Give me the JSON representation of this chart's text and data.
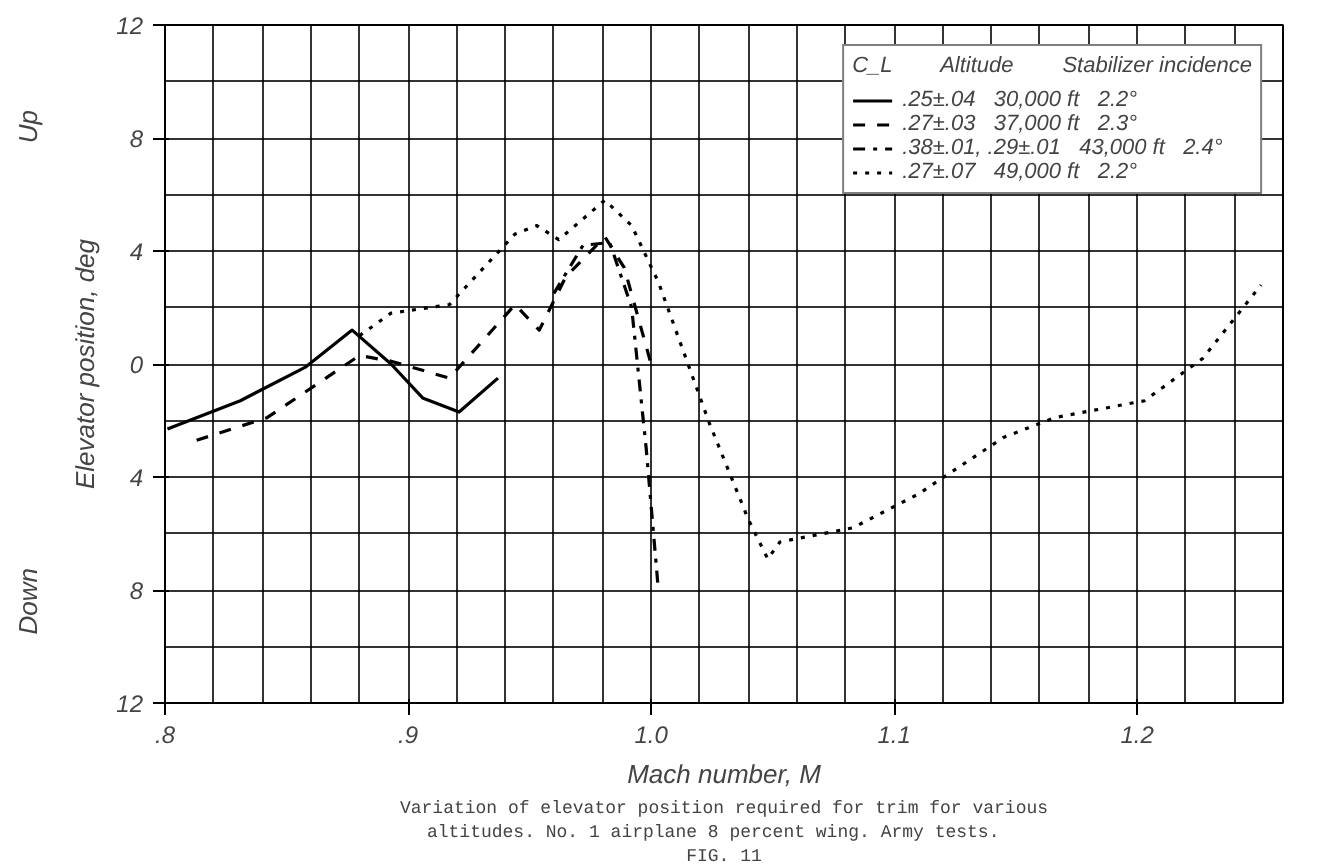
{
  "chart_data": {
    "type": "line",
    "xlabel": "Mach number, M",
    "ylabel": "Elevator position, deg",
    "legend_title": "C_L        Altitude        Stabilizer incidence",
    "xlim": [
      0.8,
      1.26
    ],
    "xticks": [
      {
        "value": 0.8,
        "label": ".8"
      },
      {
        "value": 0.9,
        "label": ".9"
      },
      {
        "value": 1.0,
        "label": "1.0"
      },
      {
        "value": 1.1,
        "label": "1.1"
      },
      {
        "value": 1.2,
        "label": "1.2"
      }
    ],
    "ylim": [
      -12,
      12
    ],
    "yticks": [
      {
        "value": -12,
        "label": "12"
      },
      {
        "value": -8,
        "label": "8"
      },
      {
        "value": -4,
        "label": "4"
      },
      0,
      4,
      8,
      12
    ],
    "grid": true,
    "legend": "top right",
    "marker": "none",
    "series": [
      {
        "name": ".25±.04   30,000 ft   2.2°",
        "color": "#000000",
        "line_style": "solid",
        "x": [
          0.801,
          0.831,
          0.858,
          0.877,
          0.893,
          0.906,
          0.921,
          0.937
        ],
        "values": [
          -2.3,
          -1.3,
          -0.1,
          1.2,
          0.0,
          -1.2,
          -1.7,
          -0.5
        ]
      },
      {
        "name": ".27±.03   37,000 ft   2.3°",
        "color": "#000000",
        "line_style": "dashed",
        "x": [
          0.813,
          0.842,
          0.88,
          0.893,
          0.917,
          0.944,
          0.954,
          0.965,
          0.981,
          0.989,
          1.0
        ],
        "values": [
          -2.7,
          -1.9,
          0.3,
          0.1,
          -0.5,
          2.1,
          1.2,
          3.1,
          4.5,
          3.4,
          0.0
        ]
      },
      {
        "name": ".38±.01, .29±.01   43,000 ft   2.4°",
        "color": "#000000",
        "line_style": "dashdot",
        "x": [
          0.96,
          0.972,
          0.983,
          0.992,
          0.998,
          1.003
        ],
        "values": [
          2.5,
          4.2,
          4.3,
          2.0,
          -3.0,
          -8.0
        ]
      },
      {
        "name": ".27±.07   49,000 ft   2.2°",
        "color": "#000000",
        "line_style": "dotted",
        "x": [
          0.88,
          0.893,
          0.917,
          0.944,
          0.953,
          0.962,
          0.981,
          0.992,
          1.003,
          1.024,
          1.04,
          1.048,
          1.053,
          1.059,
          1.083,
          1.11,
          1.145,
          1.166,
          1.203,
          1.227,
          1.251
        ],
        "values": [
          1.0,
          1.8,
          2.1,
          4.6,
          4.9,
          4.4,
          5.8,
          4.9,
          2.9,
          -2.1,
          -5.5,
          -6.9,
          -6.3,
          -6.2,
          -5.8,
          -4.6,
          -2.6,
          -1.9,
          -1.3,
          0.2,
          2.8
        ]
      }
    ],
    "annotations": [
      "Up",
      "Down",
      "Variation of elevator position required for trim for various altitudes.  No. 1 airplane 8 percent wing.  Army tests.",
      "FIG. 11"
    ]
  }
}
